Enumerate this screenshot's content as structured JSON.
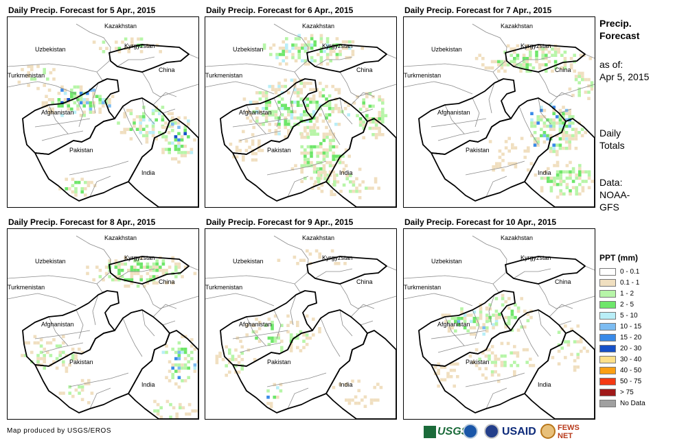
{
  "panels": [
    {
      "title": "Daily Precip. Forecast for 5 Apr., 2015",
      "coverage": "moderate rain over northern Afghanistan, northeast Pakistan and northwest India"
    },
    {
      "title": "Daily Precip. Forecast for 6 Apr., 2015",
      "coverage": "widespread light rain over Afghanistan, Pakistan, Kyrgyzstan and India"
    },
    {
      "title": "Daily Precip. Forecast for 7 Apr., 2015",
      "coverage": "rain over northeast Pakistan, Kyrgyzstan and northern India"
    },
    {
      "title": "Daily Precip. Forecast for 8 Apr., 2015",
      "coverage": "scattered rain over Kyrgyzstan, western Afghanistan, India"
    },
    {
      "title": "Daily Precip. Forecast for 9 Apr., 2015",
      "coverage": "mostly dry, light rain in northern Afghanistan"
    },
    {
      "title": "Daily Precip. Forecast for 10 Apr., 2015",
      "coverage": "rain over central Afghanistan and northern Pakistan"
    }
  ],
  "map_labels": {
    "kazakhstan": "Kazakhstan",
    "uzbekistan": "Uzbekistan",
    "kyrgyzstan": "Kyrgyzstan",
    "turkmenistan": "Turkmenistan",
    "china": "China",
    "afghanistan": "Afghanistan",
    "pakistan": "Pakistan",
    "india": "India"
  },
  "side": {
    "title_line1": "Precip.",
    "title_line2": "Forecast",
    "asof_line1": "as of:",
    "asof_line2": "Apr 5, 2015",
    "totals_line1": "Daily",
    "totals_line2": "Totals",
    "data_line1": "Data:",
    "data_line2": "NOAA-",
    "data_line3": "GFS"
  },
  "legend": {
    "title": "PPT (mm)",
    "items": [
      {
        "label": "0 - 0.1",
        "color": "#ffffff"
      },
      {
        "label": "0.1 - 1",
        "color": "#f0dfc0"
      },
      {
        "label": "1 - 2",
        "color": "#b7f5a8"
      },
      {
        "label": "2 - 5",
        "color": "#6ee66a"
      },
      {
        "label": "5 - 10",
        "color": "#b9eef7"
      },
      {
        "label": "10 - 15",
        "color": "#7cbcf2"
      },
      {
        "label": "15 - 20",
        "color": "#3a8ae8"
      },
      {
        "label": "20 - 30",
        "color": "#1550c8"
      },
      {
        "label": "30 - 40",
        "color": "#fde08a"
      },
      {
        "label": "40 - 50",
        "color": "#fb9f14"
      },
      {
        "label": "50 - 75",
        "color": "#f43a14"
      },
      {
        "label": "> 75",
        "color": "#a01a1a"
      },
      {
        "label": "No Data",
        "color": "#a0a0a0"
      }
    ]
  },
  "footer": "Map produced by USGS/EROS",
  "logos": {
    "usgs": "USGS",
    "usaid": "USAID",
    "fews": "FEWS NET"
  }
}
